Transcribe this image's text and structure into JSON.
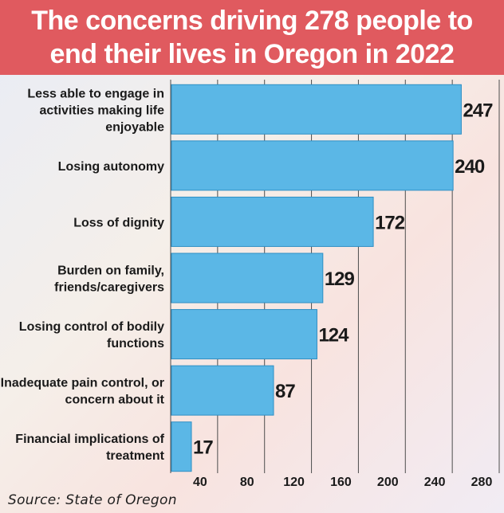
{
  "title": {
    "line1": "The concerns driving 278 people to",
    "line2": "end their lives in Oregon in 2022"
  },
  "source": "Source: State of Oregon",
  "colors": {
    "banner": "#e05a5f",
    "bar": "#5bb7e6",
    "bar_border": "#2f8fc4",
    "text": "#1a1a1a",
    "grid": "#4d4d4d"
  },
  "chart_data": {
    "type": "bar",
    "orientation": "horizontal",
    "title": "The concerns driving 278 people to end their lives in Oregon in 2022",
    "categories": [
      [
        "Less able to engage in",
        "activities making life",
        "enjoyable"
      ],
      [
        "Losing autonomy"
      ],
      [
        "Loss of dignity"
      ],
      [
        "Burden on family,",
        "friends/caregivers"
      ],
      [
        "Losing control of bodily",
        "functions"
      ],
      [
        "Inadequate pain control, or",
        "concern about it"
      ],
      [
        "Financial implications of",
        "treatment"
      ]
    ],
    "values": [
      247,
      240,
      172,
      129,
      124,
      87,
      17
    ],
    "xlim": [
      0,
      280
    ],
    "xticks": [
      40,
      80,
      120,
      160,
      200,
      240,
      280
    ],
    "grid": true,
    "xlabel": "",
    "ylabel": ""
  }
}
